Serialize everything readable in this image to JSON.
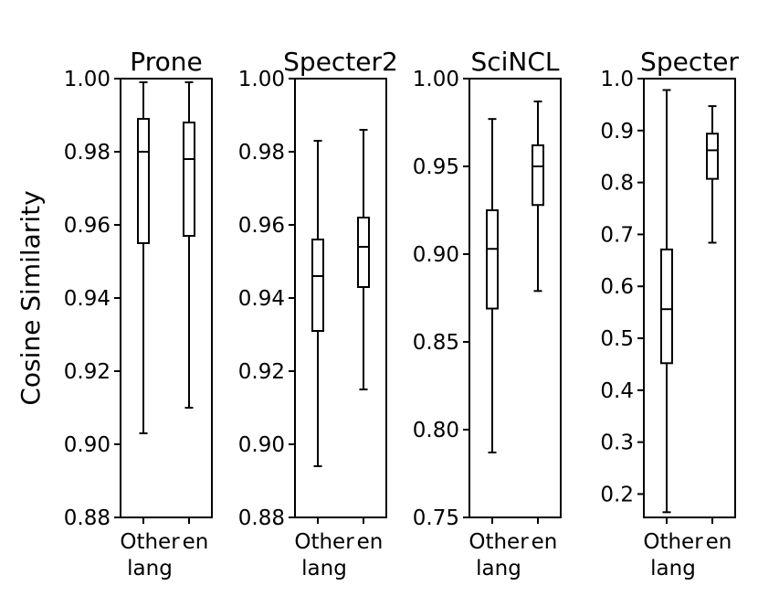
{
  "figure": {
    "ylabel": "Cosine Similarity",
    "background_color": "#ffffff",
    "line_color": "#000000"
  },
  "chart_data": [
    {
      "type": "boxplot",
      "title": "Prone",
      "ylabel": "Cosine Similarity",
      "ylim": [
        0.88,
        1.0
      ],
      "yticks": [
        "0.88",
        "0.90",
        "0.92",
        "0.94",
        "0.96",
        "0.98",
        "1.00"
      ],
      "categories": [
        "Other\nlang",
        "en"
      ],
      "grid": false,
      "boxes": [
        {
          "category": "Other lang",
          "whislo": 0.903,
          "q1": 0.955,
          "med": 0.98,
          "q3": 0.989,
          "whishi": 0.999
        },
        {
          "category": "en",
          "whislo": 0.91,
          "q1": 0.957,
          "med": 0.978,
          "q3": 0.988,
          "whishi": 0.999
        }
      ]
    },
    {
      "type": "boxplot",
      "title": "Specter2",
      "ylim": [
        0.88,
        1.0
      ],
      "yticks": [
        "0.88",
        "0.90",
        "0.92",
        "0.94",
        "0.96",
        "0.98",
        "1.00"
      ],
      "categories": [
        "Other\nlang",
        "en"
      ],
      "grid": false,
      "boxes": [
        {
          "category": "Other lang",
          "whislo": 0.894,
          "q1": 0.931,
          "med": 0.946,
          "q3": 0.956,
          "whishi": 0.983
        },
        {
          "category": "en",
          "whislo": 0.915,
          "q1": 0.943,
          "med": 0.954,
          "q3": 0.962,
          "whishi": 0.986
        }
      ]
    },
    {
      "type": "boxplot",
      "title": "SciNCL",
      "ylim": [
        0.75,
        1.0
      ],
      "yticks": [
        "0.75",
        "0.80",
        "0.85",
        "0.90",
        "0.95",
        "1.00"
      ],
      "categories": [
        "Other\nlang",
        "en"
      ],
      "grid": false,
      "boxes": [
        {
          "category": "Other lang",
          "whislo": 0.787,
          "q1": 0.869,
          "med": 0.903,
          "q3": 0.925,
          "whishi": 0.977
        },
        {
          "category": "en",
          "whislo": 0.879,
          "q1": 0.928,
          "med": 0.95,
          "q3": 0.962,
          "whishi": 0.987
        }
      ]
    },
    {
      "type": "boxplot",
      "title": "Specter",
      "ylim": [
        0.155,
        1.0
      ],
      "yticks": [
        "0.2",
        "0.3",
        "0.4",
        "0.5",
        "0.6",
        "0.7",
        "0.8",
        "0.9",
        "1.0"
      ],
      "categories": [
        "Other\nlang",
        "en"
      ],
      "grid": false,
      "boxes": [
        {
          "category": "Other lang",
          "whislo": 0.165,
          "q1": 0.452,
          "med": 0.556,
          "q3": 0.671,
          "whishi": 0.978
        },
        {
          "category": "en",
          "whislo": 0.684,
          "q1": 0.807,
          "med": 0.862,
          "q3": 0.894,
          "whishi": 0.947
        }
      ]
    }
  ]
}
